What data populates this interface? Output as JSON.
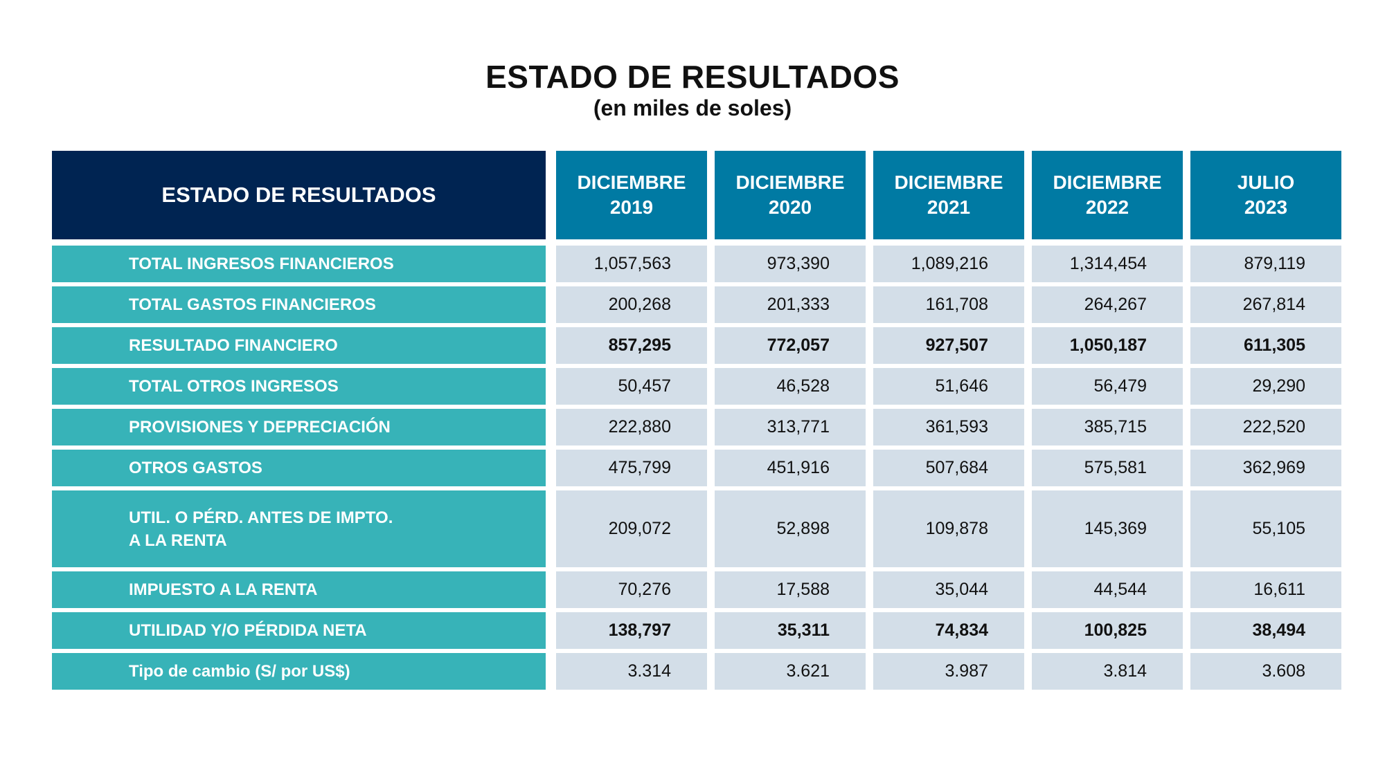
{
  "title": "ESTADO DE RESULTADOS",
  "subtitle": "(en miles de soles)",
  "chart_data": {
    "type": "table",
    "header_label": "ESTADO DE RESULTADOS",
    "columns": [
      {
        "line1": "DICIEMBRE",
        "line2": "2019"
      },
      {
        "line1": "DICIEMBRE",
        "line2": "2020"
      },
      {
        "line1": "DICIEMBRE",
        "line2": "2021"
      },
      {
        "line1": "DICIEMBRE",
        "line2": "2022"
      },
      {
        "line1": "JULIO",
        "line2": "2023"
      }
    ],
    "rows": [
      {
        "label": "TOTAL INGRESOS FINANCIEROS",
        "bold": false,
        "values": [
          "1,057,563",
          "973,390",
          "1,089,216",
          "1,314,454",
          "879,119"
        ]
      },
      {
        "label": "TOTAL GASTOS FINANCIEROS",
        "bold": false,
        "values": [
          "200,268",
          "201,333",
          "161,708",
          "264,267",
          "267,814"
        ]
      },
      {
        "label": "RESULTADO FINANCIERO",
        "bold": true,
        "values": [
          "857,295",
          "772,057",
          "927,507",
          "1,050,187",
          "611,305"
        ]
      },
      {
        "label": "TOTAL OTROS INGRESOS",
        "bold": false,
        "values": [
          "50,457",
          "46,528",
          "51,646",
          "56,479",
          "29,290"
        ]
      },
      {
        "label": "PROVISIONES Y DEPRECIACIÓN",
        "bold": false,
        "values": [
          "222,880",
          "313,771",
          "361,593",
          "385,715",
          "222,520"
        ]
      },
      {
        "label": "OTROS GASTOS",
        "bold": false,
        "values": [
          "475,799",
          "451,916",
          "507,684",
          "575,581",
          "362,969"
        ]
      },
      {
        "label": "UTIL. O PÉRD. ANTES DE IMPTO.\nA LA RENTA",
        "bold": false,
        "values": [
          "209,072",
          "52,898",
          "109,878",
          "145,369",
          "55,105"
        ]
      },
      {
        "label": "IMPUESTO A LA RENTA",
        "bold": false,
        "values": [
          "70,276",
          "17,588",
          "35,044",
          "44,544",
          "16,611"
        ]
      },
      {
        "label": "UTILIDAD Y/O PÉRDIDA NETA",
        "bold": true,
        "values": [
          "138,797",
          "35,311",
          "74,834",
          "100,825",
          "38,494"
        ]
      },
      {
        "label": "Tipo de cambio (S/ por US$)",
        "bold": false,
        "values": [
          "3.314",
          "3.621",
          "3.987",
          "3.814",
          "3.608"
        ]
      }
    ]
  },
  "colors": {
    "header_main": "#002452",
    "header_col": "#007aa3",
    "row_label": "#37b3b8",
    "cell_bg": "#d3dee8"
  }
}
